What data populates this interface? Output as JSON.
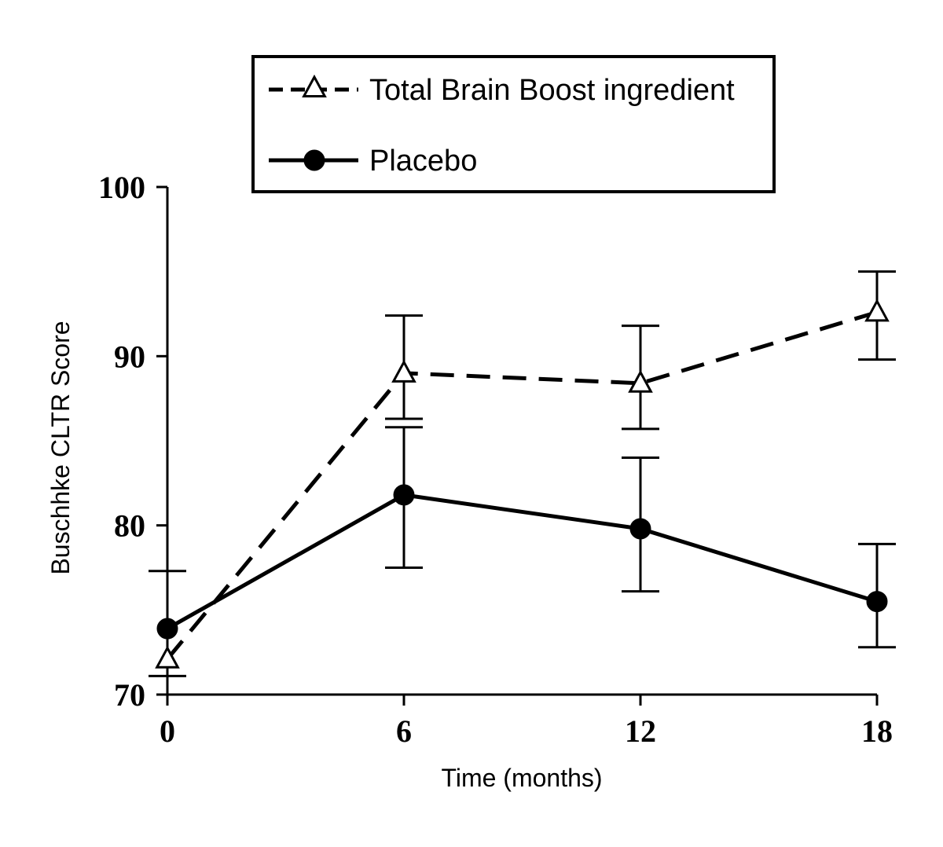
{
  "chart_data": {
    "type": "line",
    "xlabel": "Time (months)",
    "ylabel": "Buschhke CLTR Score",
    "x": [
      0,
      6,
      12,
      18
    ],
    "x_ticks": [
      "0",
      "6",
      "12",
      "18"
    ],
    "y_ticks": [
      "70",
      "80",
      "90",
      "100"
    ],
    "xlim": [
      0,
      18
    ],
    "ylim": [
      70,
      100
    ],
    "grid": false,
    "legend_position": "top-center",
    "series": [
      {
        "name": "Total Brain Boost ingredient",
        "marker": "open-triangle",
        "line_style": "dashed",
        "color": "#000000",
        "values": [
          72.1,
          89.0,
          88.4,
          92.6
        ],
        "error_upper": [
          77.3,
          92.4,
          91.8,
          95.0
        ],
        "error_lower": [
          71.1,
          86.3,
          85.7,
          89.8
        ]
      },
      {
        "name": "Placebo",
        "marker": "filled-circle",
        "line_style": "solid",
        "color": "#000000",
        "values": [
          73.9,
          81.8,
          79.8,
          75.5
        ],
        "error_upper": [
          73.9,
          85.8,
          84.0,
          78.9
        ],
        "error_lower": [
          73.9,
          77.5,
          76.1,
          72.8
        ]
      }
    ]
  }
}
